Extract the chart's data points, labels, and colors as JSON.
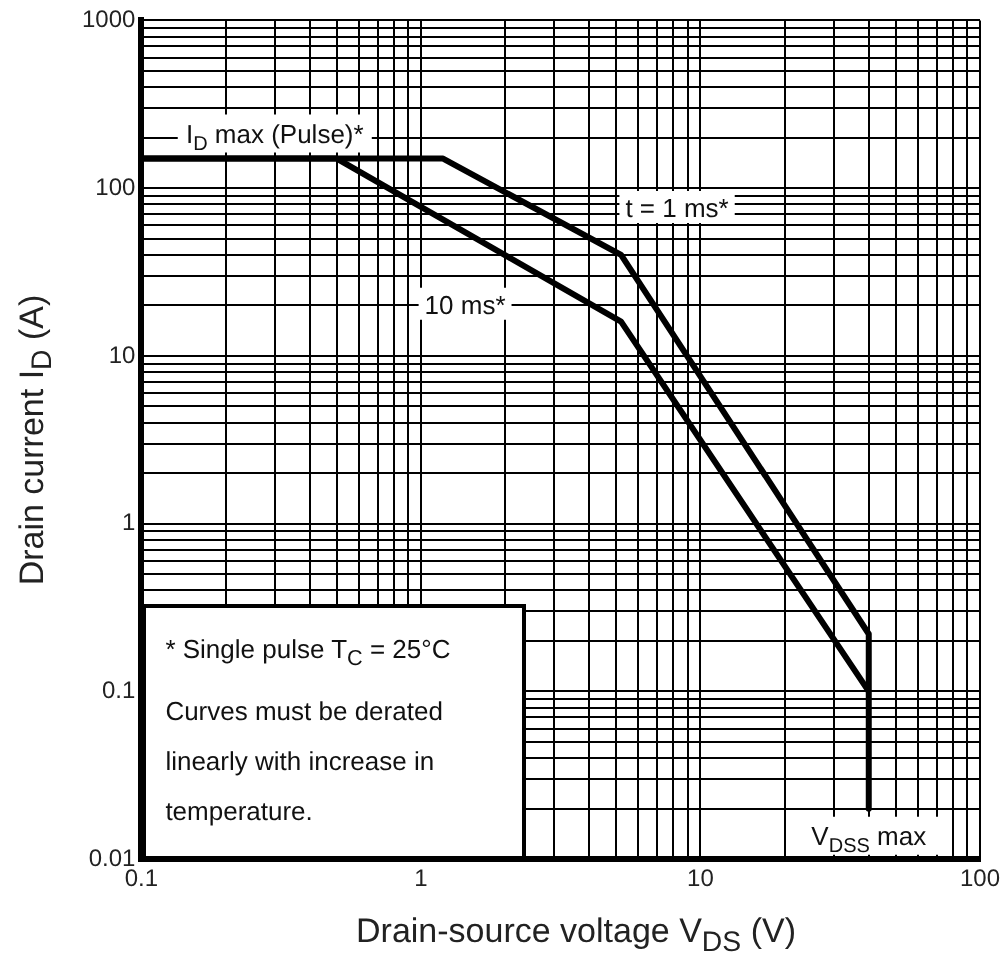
{
  "chart_data": {
    "type": "line",
    "xlabel": "Drain-source voltage  V$_{DS}$  (V)",
    "ylabel": "Drain current  I$_{D}$  (A)",
    "log": "xy",
    "grid": true,
    "legend": false,
    "marker": "none",
    "line_style": "solid",
    "xlim": [
      0.1,
      100
    ],
    "ylim": [
      0.01,
      1000
    ],
    "xticks": [
      0.1,
      {
        "value": 0.2,
        "label": null
      },
      {
        "value": 0.3,
        "label": null
      },
      {
        "value": 0.4,
        "label": null
      },
      {
        "value": 0.5,
        "label": null
      },
      {
        "value": 0.6,
        "label": null
      },
      {
        "value": 0.7,
        "label": null
      },
      {
        "value": 0.8,
        "label": null
      },
      {
        "value": 0.9,
        "label": null
      },
      1,
      {
        "value": 2,
        "label": null
      },
      {
        "value": 3,
        "label": null
      },
      {
        "value": 4,
        "label": null
      },
      {
        "value": 5,
        "label": null
      },
      {
        "value": 6,
        "label": null
      },
      {
        "value": 7,
        "label": null
      },
      {
        "value": 8,
        "label": null
      },
      {
        "value": 9,
        "label": null
      },
      10,
      {
        "value": 20,
        "label": null
      },
      {
        "value": 30,
        "label": null
      },
      {
        "value": 40,
        "label": null
      },
      {
        "value": 50,
        "label": null
      },
      {
        "value": 60,
        "label": null
      },
      {
        "value": 70,
        "label": null
      },
      {
        "value": 80,
        "label": null
      },
      {
        "value": 90,
        "label": null
      },
      100
    ],
    "yticks": [
      0.01,
      {
        "value": 0.02,
        "label": null
      },
      {
        "value": 0.03,
        "label": null
      },
      {
        "value": 0.04,
        "label": null
      },
      {
        "value": 0.05,
        "label": null
      },
      {
        "value": 0.06,
        "label": null
      },
      {
        "value": 0.07,
        "label": null
      },
      {
        "value": 0.08,
        "label": null
      },
      {
        "value": 0.09,
        "label": null
      },
      0.1,
      {
        "value": 0.2,
        "label": null
      },
      {
        "value": 0.3,
        "label": null
      },
      {
        "value": 0.4,
        "label": null
      },
      {
        "value": 0.5,
        "label": null
      },
      {
        "value": 0.6,
        "label": null
      },
      {
        "value": 0.7,
        "label": null
      },
      {
        "value": 0.8,
        "label": null
      },
      {
        "value": 0.9,
        "label": null
      },
      1,
      {
        "value": 2,
        "label": null
      },
      {
        "value": 3,
        "label": null
      },
      {
        "value": 4,
        "label": null
      },
      {
        "value": 5,
        "label": null
      },
      {
        "value": 6,
        "label": null
      },
      {
        "value": 7,
        "label": null
      },
      {
        "value": 8,
        "label": null
      },
      {
        "value": 9,
        "label": null
      },
      10,
      {
        "value": 20,
        "label": null
      },
      {
        "value": 30,
        "label": null
      },
      {
        "value": 40,
        "label": null
      },
      {
        "value": 50,
        "label": null
      },
      {
        "value": 60,
        "label": null
      },
      {
        "value": 70,
        "label": null
      },
      {
        "value": 80,
        "label": null
      },
      {
        "value": 90,
        "label": null
      },
      100,
      {
        "value": 200,
        "label": null
      },
      {
        "value": 300,
        "label": null
      },
      {
        "value": 400,
        "label": null
      },
      {
        "value": 500,
        "label": null
      },
      {
        "value": 600,
        "label": null
      },
      {
        "value": 700,
        "label": null
      },
      {
        "value": 800,
        "label": null
      },
      {
        "value": 900,
        "label": null
      },
      1000
    ],
    "series": [
      {
        "name": "t = 1 ms*",
        "color": "#000000",
        "x": [
          0.1,
          1.2,
          5.2,
          40,
          40,
          40
        ],
        "values": [
          150,
          150,
          40,
          0.22,
          0.1,
          0.02
        ]
      },
      {
        "name": "10 ms*",
        "color": "#000000",
        "x": [
          0.1,
          0.5,
          5.2,
          40
        ],
        "values": [
          150,
          150,
          16,
          0.1
        ]
      }
    ],
    "annotations": [
      {
        "text": "I$_{D}$ max (Pulse)*",
        "x": 0.3,
        "y": 150
      },
      {
        "text": "V$_{DSS}$ max",
        "x": 40,
        "y": 0.02
      },
      "* Single pulse T$_{C}$ = 25°C",
      "Curves must be derated linearly with increase in temperature."
    ]
  }
}
